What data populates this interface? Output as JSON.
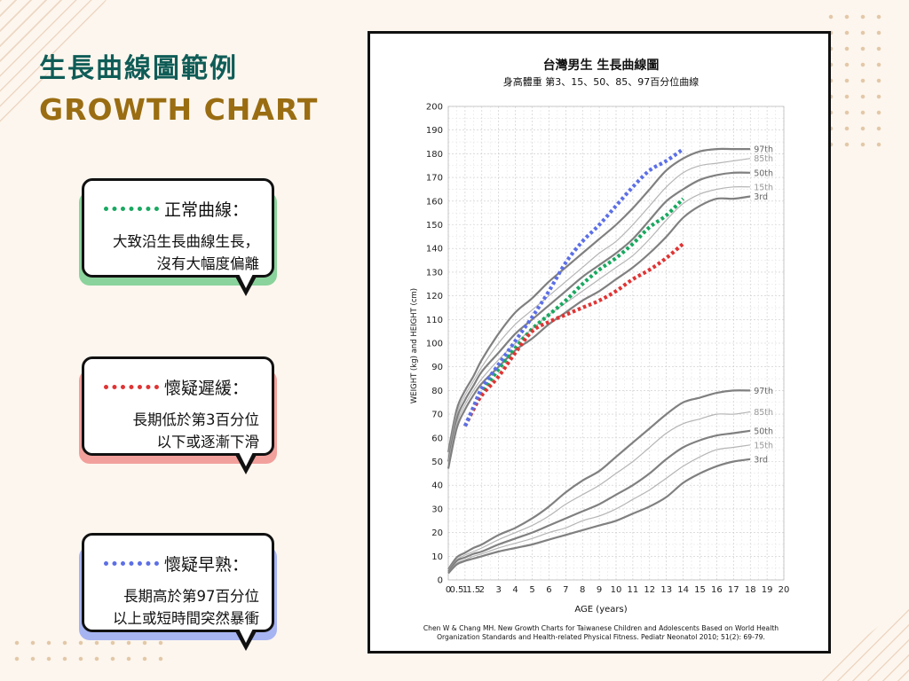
{
  "title_zh": "生長曲線圖範例",
  "title_en": "GROWTH CHART",
  "bubbles": [
    {
      "label": "正常曲線：",
      "body_lines": [
        "大致沿生長曲線生長，",
        "沒有大幅度偏離"
      ],
      "dash_color": "#19a860",
      "shadow_color": "#8bd39c"
    },
    {
      "label": "懷疑遲緩：",
      "body_lines": [
        "長期低於第3百分位",
        "以下或逐漸下滑"
      ],
      "dash_color": "#e03434",
      "shadow_color": "#f2a09c"
    },
    {
      "label": "懷疑早熟：",
      "body_lines": [
        "長期高於第97百分位",
        "以上或短時間突然暴衝"
      ],
      "dash_color": "#5c6fe6",
      "shadow_color": "#a7b4f2"
    }
  ],
  "chart_data": {
    "type": "line",
    "title": "台灣男生  生長曲線圖",
    "subtitle": "身高體重  第3、15、50、85、97百分位曲線",
    "xlabel": "AGE (years)",
    "ylabel": "WEIGHT (kg) and HEIGHT (cm)",
    "x_ticks": [
      0,
      0.5,
      1,
      1.5,
      2,
      3,
      4,
      5,
      6,
      7,
      8,
      9,
      10,
      11,
      12,
      13,
      14,
      15,
      16,
      17,
      18,
      19,
      20
    ],
    "x_tick_labels": [
      "0",
      "0.5",
      "1",
      "1.5",
      "2",
      "3",
      "4",
      "5",
      "6",
      "7",
      "8",
      "9",
      "10",
      "11",
      "12",
      "13",
      "14",
      "15",
      "16",
      "17",
      "18",
      "19",
      "20"
    ],
    "y_ticks": [
      0,
      10,
      20,
      30,
      40,
      50,
      60,
      70,
      80,
      90,
      100,
      110,
      120,
      130,
      140,
      150,
      160,
      170,
      180,
      190,
      200
    ],
    "ylim": [
      0,
      200
    ],
    "grid": true,
    "percentile_labels": [
      "97th",
      "85th",
      "50th",
      "15th",
      "3rd"
    ],
    "height_percentiles": [
      {
        "name": "97th",
        "x": [
          0,
          0.5,
          1,
          1.5,
          2,
          3,
          4,
          5,
          6,
          7,
          8,
          9,
          10,
          11,
          12,
          13,
          14,
          15,
          16,
          17,
          18
        ],
        "y": [
          54,
          72,
          80,
          86,
          93,
          104,
          113,
          119,
          126,
          132,
          138,
          144,
          150,
          157,
          165,
          173,
          178,
          181,
          182,
          182,
          182
        ]
      },
      {
        "name": "85th",
        "x": [
          0,
          0.5,
          1,
          1.5,
          2,
          3,
          4,
          5,
          6,
          7,
          8,
          9,
          10,
          11,
          12,
          13,
          14,
          15,
          16,
          17,
          18
        ],
        "y": [
          52,
          70,
          78,
          84,
          90,
          100,
          108,
          114,
          120,
          126,
          132,
          138,
          143,
          150,
          158,
          166,
          172,
          175,
          176,
          177,
          178
        ]
      },
      {
        "name": "50th",
        "x": [
          0,
          0.5,
          1,
          1.5,
          2,
          3,
          4,
          5,
          6,
          7,
          8,
          9,
          10,
          11,
          12,
          13,
          14,
          15,
          16,
          17,
          18
        ],
        "y": [
          50,
          68,
          76,
          82,
          88,
          96,
          104,
          110,
          116,
          122,
          128,
          133,
          138,
          144,
          152,
          160,
          165,
          169,
          171,
          172,
          172
        ]
      },
      {
        "name": "15th",
        "x": [
          0,
          0.5,
          1,
          1.5,
          2,
          3,
          4,
          5,
          6,
          7,
          8,
          9,
          10,
          11,
          12,
          13,
          14,
          15,
          16,
          17,
          18
        ],
        "y": [
          49,
          66,
          74,
          80,
          85,
          93,
          100,
          106,
          112,
          117,
          122,
          127,
          132,
          137,
          144,
          152,
          159,
          163,
          165,
          166,
          166
        ]
      },
      {
        "name": "3rd",
        "x": [
          0,
          0.5,
          1,
          1.5,
          2,
          3,
          4,
          5,
          6,
          7,
          8,
          9,
          10,
          11,
          12,
          13,
          14,
          15,
          16,
          17,
          18
        ],
        "y": [
          47,
          64,
          72,
          78,
          83,
          90,
          97,
          102,
          108,
          113,
          118,
          122,
          127,
          132,
          138,
          145,
          153,
          158,
          161,
          161,
          162
        ]
      }
    ],
    "weight_percentiles": [
      {
        "name": "97th",
        "x": [
          0,
          0.5,
          1,
          1.5,
          2,
          3,
          4,
          5,
          6,
          7,
          8,
          9,
          10,
          11,
          12,
          13,
          14,
          15,
          16,
          17,
          18
        ],
        "y": [
          4.5,
          9.5,
          11.5,
          13.5,
          15,
          19,
          22,
          26,
          31,
          37,
          42,
          46,
          52,
          58,
          64,
          70,
          75,
          77,
          79,
          80,
          80
        ]
      },
      {
        "name": "85th",
        "x": [
          0,
          0.5,
          1,
          1.5,
          2,
          3,
          4,
          5,
          6,
          7,
          8,
          9,
          10,
          11,
          12,
          13,
          14,
          15,
          16,
          17,
          18
        ],
        "y": [
          4,
          8.5,
          10.5,
          12,
          13.5,
          17,
          20,
          23,
          27,
          32,
          36,
          40,
          45,
          50,
          56,
          62,
          66,
          68,
          70,
          70,
          71
        ]
      },
      {
        "name": "50th",
        "x": [
          0,
          0.5,
          1,
          1.5,
          2,
          3,
          4,
          5,
          6,
          7,
          8,
          9,
          10,
          11,
          12,
          13,
          14,
          15,
          16,
          17,
          18
        ],
        "y": [
          3.5,
          8,
          9.5,
          11,
          12,
          15,
          17.5,
          20,
          23,
          26,
          29,
          32,
          36,
          40,
          45,
          51,
          56,
          59,
          61,
          62,
          63
        ]
      },
      {
        "name": "15th",
        "x": [
          0,
          0.5,
          1,
          1.5,
          2,
          3,
          4,
          5,
          6,
          7,
          8,
          9,
          10,
          11,
          12,
          13,
          14,
          15,
          16,
          17,
          18
        ],
        "y": [
          3,
          7,
          8.5,
          10,
          11,
          13.5,
          15.5,
          17.5,
          20,
          22,
          25,
          27,
          30,
          34,
          38,
          43,
          48,
          52,
          55,
          56,
          57
        ]
      },
      {
        "name": "3rd",
        "x": [
          0,
          0.5,
          1,
          1.5,
          2,
          3,
          4,
          5,
          6,
          7,
          8,
          9,
          10,
          11,
          12,
          13,
          14,
          15,
          16,
          17,
          18
        ],
        "y": [
          2.8,
          6.5,
          8,
          9,
          10,
          12,
          13.5,
          15,
          17,
          19,
          21,
          23,
          25,
          28,
          31,
          35,
          41,
          45,
          48,
          50,
          51
        ]
      }
    ],
    "example_series": [
      {
        "name": "正常曲線",
        "color": "#19a860",
        "x": [
          1,
          1.5,
          2,
          3,
          4,
          5,
          6,
          7,
          8,
          9,
          10,
          11,
          12,
          13,
          14
        ],
        "y": [
          65,
          72,
          79,
          89,
          98,
          106,
          112,
          118,
          125,
          131,
          136,
          142,
          149,
          154,
          161
        ]
      },
      {
        "name": "懷疑遲緩",
        "color": "#e03434",
        "x": [
          1,
          1.5,
          2,
          3,
          4,
          5,
          6,
          7,
          8,
          9,
          10,
          11,
          12,
          13,
          14
        ],
        "y": [
          65,
          72,
          78,
          86,
          96,
          105,
          109,
          112,
          115,
          118,
          122,
          127,
          131,
          136,
          142
        ]
      },
      {
        "name": "懷疑早熟",
        "color": "#5c6fe6",
        "x": [
          1,
          1.5,
          2,
          3,
          4,
          5,
          6,
          7,
          8,
          9,
          10,
          11,
          12,
          13,
          14
        ],
        "y": [
          65,
          73,
          81,
          91,
          101,
          111,
          122,
          134,
          143,
          150,
          158,
          166,
          173,
          177,
          182
        ]
      }
    ],
    "citation_lines": [
      "Chen W & Chang MH. New Growth Charts for Taiwanese Children and Adolescents Based on World Health",
      "Organization Standards and Health-related Physical Fitness. Pediatr Neonatol 2010; 51(2): 69-79."
    ]
  }
}
